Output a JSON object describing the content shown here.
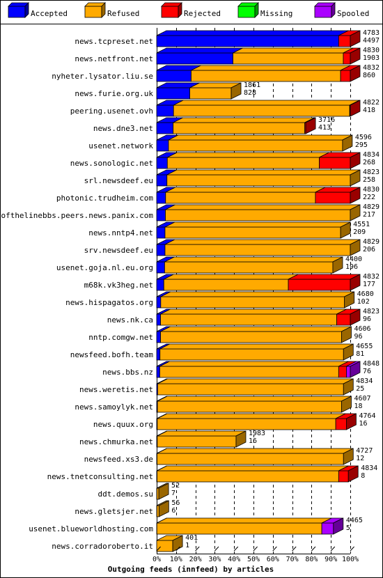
{
  "chart_data": {
    "type": "bar",
    "orientation": "horizontal",
    "stacked": true,
    "style": "3d",
    "title": "",
    "xlabel": "Outgoing feeds (innfeed) by articles",
    "ylabel": "",
    "xlim": [
      0,
      100
    ],
    "unit": "percent",
    "grid": true,
    "legend_position": "top",
    "x_ticks": [
      "0%",
      "10%",
      "20%",
      "30%",
      "40%",
      "50%",
      "60%",
      "70%",
      "80%",
      "90%",
      "100%"
    ],
    "series": [
      {
        "name": "Accepted",
        "color": "#0000ff"
      },
      {
        "name": "Refused",
        "color": "#ffaa00"
      },
      {
        "name": "Rejected",
        "color": "#ff0000"
      },
      {
        "name": "Missing",
        "color": "#00ff00"
      },
      {
        "name": "Spooled",
        "color": "#aa00ff"
      }
    ],
    "rows": [
      {
        "label": "news.tcpreset.net",
        "total": "4783",
        "accepted": "4497",
        "segments": [
          94,
          0,
          6,
          0,
          0
        ]
      },
      {
        "label": "news.netfront.net",
        "total": "4830",
        "accepted": "1903",
        "segments": [
          39.4,
          57,
          3.6,
          0,
          0
        ]
      },
      {
        "label": "nyheter.lysator.liu.se",
        "total": "4832",
        "accepted": "860",
        "segments": [
          17.8,
          77.2,
          5,
          0,
          0
        ]
      },
      {
        "label": "news.furie.org.uk",
        "total": "1861",
        "accepted": "828",
        "segments": [
          17.1,
          21.4,
          0,
          0,
          0
        ]
      },
      {
        "label": "peering.usenet.ovh",
        "total": "4822",
        "accepted": "418",
        "segments": [
          8.7,
          91,
          0.3,
          0,
          0
        ]
      },
      {
        "label": "news.dne3.net",
        "total": "3716",
        "accepted": "413",
        "segments": [
          8.5,
          68,
          0.5,
          0,
          0
        ]
      },
      {
        "label": "usenet.network",
        "total": "4596",
        "accepted": "295",
        "segments": [
          6.1,
          89.9,
          0,
          0,
          0
        ]
      },
      {
        "label": "news.sonologic.net",
        "total": "4834",
        "accepted": "268",
        "segments": [
          5.5,
          78.5,
          16,
          0,
          0
        ]
      },
      {
        "label": "srl.newsdeef.eu",
        "total": "4823",
        "accepted": "258",
        "segments": [
          5.3,
          94.7,
          0,
          0,
          0
        ]
      },
      {
        "label": "photonic.trudheim.com",
        "total": "4830",
        "accepted": "222",
        "segments": [
          4.6,
          77.4,
          18,
          0,
          0
        ]
      },
      {
        "label": "endofthelinebbs.peers.news.panix.com",
        "total": "4829",
        "accepted": "217",
        "segments": [
          4.5,
          95.5,
          0,
          0,
          0
        ]
      },
      {
        "label": "news.nntp4.net",
        "total": "4551",
        "accepted": "209",
        "segments": [
          4.3,
          90.7,
          0,
          0,
          0
        ]
      },
      {
        "label": "srv.newsdeef.eu",
        "total": "4829",
        "accepted": "206",
        "segments": [
          4.3,
          95.7,
          0,
          0,
          0
        ]
      },
      {
        "label": "usenet.goja.nl.eu.org",
        "total": "4400",
        "accepted": "196",
        "segments": [
          4.1,
          86.9,
          0,
          0,
          0
        ]
      },
      {
        "label": "m68k.vk3heg.net",
        "total": "4832",
        "accepted": "177",
        "segments": [
          3.7,
          64.3,
          32,
          0,
          0
        ]
      },
      {
        "label": "news.hispagatos.org",
        "total": "4680",
        "accepted": "102",
        "segments": [
          2.1,
          94.9,
          0,
          0,
          0
        ]
      },
      {
        "label": "news.nk.ca",
        "total": "4823",
        "accepted": "96",
        "segments": [
          2,
          91,
          7,
          0,
          0
        ]
      },
      {
        "label": "nntp.comgw.net",
        "total": "4606",
        "accepted": "96",
        "segments": [
          2,
          93.5,
          0,
          0,
          0
        ]
      },
      {
        "label": "newsfeed.bofh.team",
        "total": "4655",
        "accepted": "81",
        "segments": [
          1.7,
          94.8,
          0,
          0,
          0
        ]
      },
      {
        "label": "news.bbs.nz",
        "total": "4848",
        "accepted": "76",
        "segments": [
          1.6,
          92.4,
          4,
          0,
          2
        ]
      },
      {
        "label": "news.weretis.net",
        "total": "4834",
        "accepted": "25",
        "segments": [
          0.5,
          96,
          0,
          0,
          0
        ]
      },
      {
        "label": "news.samoylyk.net",
        "total": "4607",
        "accepted": "18",
        "segments": [
          0.4,
          95.1,
          0,
          0,
          0
        ]
      },
      {
        "label": "news.quux.org",
        "total": "4764",
        "accepted": "16",
        "segments": [
          0.3,
          92.2,
          5.5,
          0,
          0
        ]
      },
      {
        "label": "news.chmurka.net",
        "total": "1983",
        "accepted": "16",
        "segments": [
          0.3,
          40.7,
          0,
          0,
          0
        ]
      },
      {
        "label": "newsfeed.xs3.de",
        "total": "4727",
        "accepted": "12",
        "segments": [
          0.2,
          96.3,
          0,
          0,
          0
        ]
      },
      {
        "label": "news.tnetconsulting.net",
        "total": "4834",
        "accepted": "8",
        "segments": [
          0.2,
          93.8,
          5,
          0,
          0
        ]
      },
      {
        "label": "ddt.demos.su",
        "total": "52",
        "accepted": "7",
        "segments": [
          0.1,
          1,
          0,
          0,
          0
        ]
      },
      {
        "label": "news.gletsjer.net",
        "total": "56",
        "accepted": "6",
        "segments": [
          0.1,
          1.1,
          0,
          0,
          0
        ]
      },
      {
        "label": "usenet.blueworldhosting.com",
        "total": "4465",
        "accepted": "5",
        "segments": [
          0.1,
          85.2,
          0,
          0,
          6
        ]
      },
      {
        "label": "news.corradoroberto.it",
        "total": "401",
        "accepted": "1",
        "segments": [
          0,
          8.3,
          0,
          0,
          0
        ]
      }
    ]
  }
}
